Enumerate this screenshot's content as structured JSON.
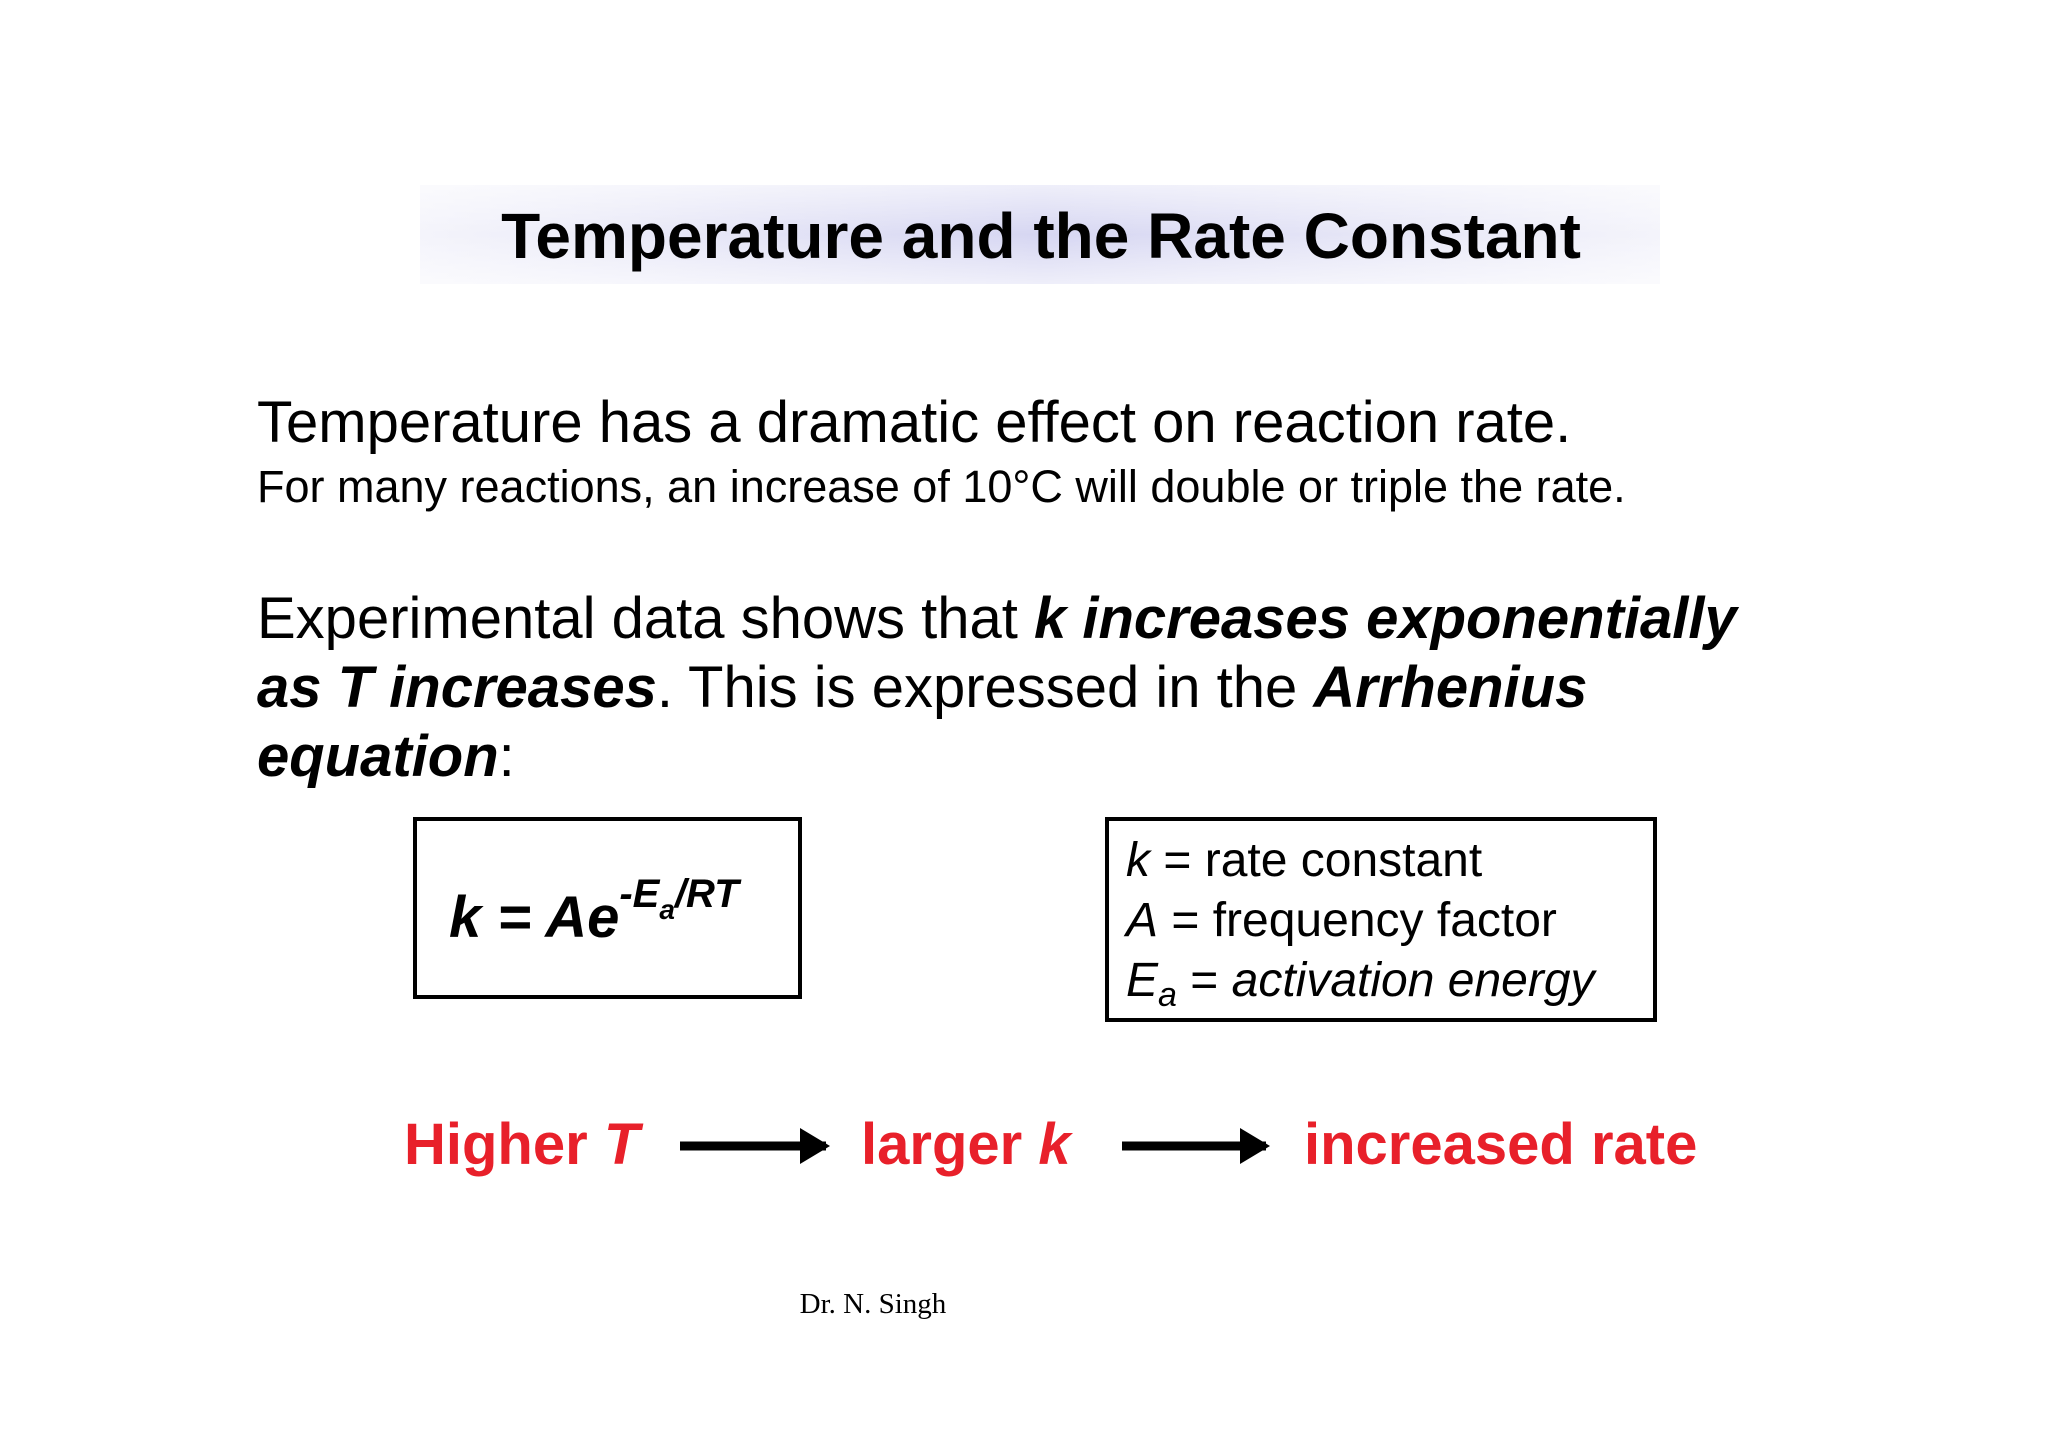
{
  "title": "Temperature and the Rate Constant",
  "intro": {
    "main": "Temperature has a dramatic effect on reaction rate.",
    "detail": "For many reactions, an increase of 10°C will double or triple the rate."
  },
  "statement": {
    "lines": [
      [
        "Experimental data shows that ",
        "k increases exponentially"
      ],
      [
        "as T increases",
        ". This is expressed in the ",
        "Arrhenius"
      ],
      [
        "equation",
        ":"
      ]
    ]
  },
  "equation": {
    "base": "k = Ae",
    "exponent": "-E",
    "exponent_subscript": "a",
    "exponent_rest": "/RT"
  },
  "legend": [
    {
      "symbol": "k",
      "relation": " = ",
      "meaning": "rate constant"
    },
    {
      "symbol": "A",
      "relation": " = ",
      "meaning": "frequency factor"
    },
    {
      "symbol": "E",
      "subscript": "a",
      "relation": " = ",
      "meaning": "activation energy"
    }
  ],
  "flow": [
    {
      "text": "Higher ",
      "symbol": "T"
    },
    {
      "text": "larger ",
      "symbol": "k"
    },
    {
      "text": "increased rate"
    }
  ],
  "footer": "Dr. N. Singh"
}
